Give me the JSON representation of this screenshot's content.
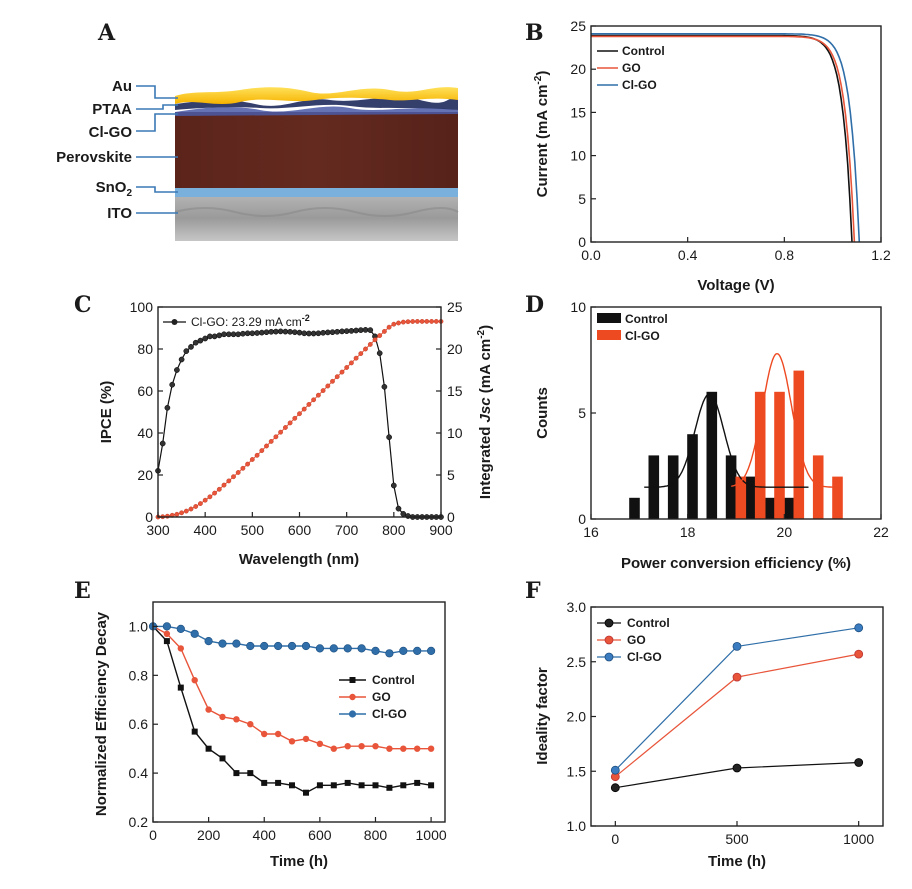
{
  "colors": {
    "control": "#111111",
    "go": "#e8553a",
    "clgo": "#2f6ea8",
    "accent_orange": "#ee4a22"
  },
  "panel_letters": {
    "A": "A",
    "B": "B",
    "C": "C",
    "D": "D",
    "E": "E",
    "F": "F"
  },
  "panel_a": {
    "layers": [
      "Au",
      "PTAA",
      "Cl-GO",
      "Perovskite",
      "SnO",
      "ITO"
    ],
    "sno2_subscript": "2"
  },
  "chart_data": [
    {
      "panel": "B",
      "type": "line",
      "xlabel": "Voltage (V)",
      "ylabel_prefix": "Current (mA cm",
      "ylabel_exp": "-2",
      "ylabel_suffix": ")",
      "xlim": [
        0,
        1.2
      ],
      "ylim": [
        0,
        25
      ],
      "xticks": [
        "0.0",
        "0.4",
        "0.8",
        "1.2"
      ],
      "yticks": [
        "0",
        "5",
        "10",
        "15",
        "20",
        "25"
      ],
      "legend": [
        "Control",
        "GO",
        "Cl-GO"
      ],
      "series": [
        {
          "name": "Control",
          "jsc": 23.9,
          "voc": 1.08
        },
        {
          "name": "GO",
          "jsc": 23.8,
          "voc": 1.09
        },
        {
          "name": "Cl-GO",
          "jsc": 24.1,
          "voc": 1.11
        }
      ]
    },
    {
      "panel": "C",
      "type": "line",
      "xlabel": "Wavelength (nm)",
      "ylabel": "IPCE (%)",
      "ylabel2_prefix": "Integrated ",
      "ylabel2_italic": "Jsc",
      "ylabel2_suffix_a": " (mA cm",
      "ylabel2_exp": "-2",
      "ylabel2_suffix_b": ")",
      "legend_prefix": "Cl-GO: 23.29 mA cm",
      "legend_exp": "-2",
      "xlim": [
        300,
        900
      ],
      "ylim": [
        0,
        100
      ],
      "y2lim": [
        0,
        25
      ],
      "xticks": [
        "300",
        "400",
        "500",
        "600",
        "700",
        "800",
        "900"
      ],
      "yticks": [
        "0",
        "20",
        "40",
        "60",
        "80",
        "100"
      ],
      "y2ticks": [
        "0",
        "5",
        "10",
        "15",
        "20",
        "25"
      ],
      "ipce": {
        "x": [
          300,
          310,
          320,
          330,
          340,
          350,
          360,
          370,
          380,
          390,
          400,
          410,
          420,
          430,
          440,
          450,
          460,
          470,
          480,
          490,
          500,
          510,
          520,
          530,
          540,
          550,
          560,
          570,
          580,
          590,
          600,
          610,
          620,
          630,
          640,
          650,
          660,
          670,
          680,
          690,
          700,
          710,
          720,
          730,
          740,
          750,
          760,
          770,
          780,
          790,
          800,
          810,
          820,
          830,
          840,
          850,
          860,
          870,
          880,
          890,
          900
        ],
        "y": [
          22,
          35,
          52,
          63,
          70,
          75,
          79,
          81,
          83,
          84,
          85,
          86,
          86,
          86.5,
          87,
          87,
          87,
          87,
          87.3,
          87.5,
          87.5,
          87.6,
          87.8,
          88,
          88.2,
          88.3,
          88.4,
          88.3,
          88.2,
          88,
          87.8,
          87.5,
          87.4,
          87.4,
          87.5,
          87.7,
          87.9,
          88,
          88.2,
          88.4,
          88.5,
          88.6,
          88.8,
          89,
          89.1,
          89,
          86,
          78,
          62,
          38,
          15,
          4,
          1.5,
          0.5,
          0,
          0,
          0,
          0,
          0,
          0,
          0
        ]
      },
      "jsc_integrated": {
        "x": [
          300,
          310,
          320,
          330,
          340,
          350,
          360,
          370,
          380,
          390,
          400,
          410,
          420,
          430,
          440,
          450,
          460,
          470,
          480,
          490,
          500,
          510,
          520,
          530,
          540,
          550,
          560,
          570,
          580,
          590,
          600,
          610,
          620,
          630,
          640,
          650,
          660,
          670,
          680,
          690,
          700,
          710,
          720,
          730,
          740,
          750,
          760,
          770,
          780,
          790,
          800,
          810,
          820,
          830,
          840,
          850,
          860,
          870,
          880,
          890,
          900
        ],
        "y": [
          0,
          0.03,
          0.1,
          0.2,
          0.32,
          0.5,
          0.7,
          0.95,
          1.25,
          1.6,
          2.0,
          2.4,
          2.85,
          3.3,
          3.8,
          4.3,
          4.8,
          5.3,
          5.8,
          6.3,
          6.85,
          7.35,
          7.9,
          8.45,
          9.0,
          9.55,
          10.1,
          10.65,
          11.2,
          11.75,
          12.3,
          12.85,
          13.4,
          13.95,
          14.5,
          15.05,
          15.6,
          16.15,
          16.7,
          17.25,
          17.8,
          18.35,
          18.9,
          19.45,
          20.0,
          20.55,
          21.1,
          21.6,
          22.1,
          22.6,
          22.95,
          23.1,
          23.2,
          23.25,
          23.27,
          23.28,
          23.29,
          23.29,
          23.29,
          23.29,
          23.29
        ]
      }
    },
    {
      "panel": "D",
      "type": "bar",
      "xlabel": "Power conversion efficiency (%)",
      "ylabel": "Counts",
      "xlim": [
        16,
        22
      ],
      "ylim": [
        0,
        10
      ],
      "xticks": [
        "16",
        "18",
        "20",
        "22"
      ],
      "yticks": [
        "0",
        "5",
        "10"
      ],
      "legend": [
        "Control",
        "Cl-GO"
      ],
      "series": [
        {
          "name": "Control",
          "x": [
            16.9,
            17.3,
            17.7,
            18.1,
            18.5,
            18.9,
            19.3,
            19.7,
            20.1
          ],
          "values": [
            1,
            3,
            3,
            4,
            6,
            3,
            2,
            1,
            1
          ],
          "fit_mu": 18.45,
          "fit_sigma": 0.3,
          "fit_amp": 4.4,
          "fit_base": 1.5,
          "fit_range": [
            17.1,
            20.5
          ]
        },
        {
          "name": "Cl-GO",
          "x": [
            19.1,
            19.5,
            19.9,
            20.3,
            20.7,
            21.1
          ],
          "values": [
            2,
            6,
            6,
            7,
            3,
            2
          ],
          "fit_mu": 19.85,
          "fit_sigma": 0.3,
          "fit_amp": 6.3,
          "fit_base": 1.5,
          "fit_range": [
            18.9,
            21.1
          ]
        }
      ]
    },
    {
      "panel": "E",
      "type": "line",
      "xlabel": "Time (h)",
      "ylabel": "Normalized Efficiency Decay",
      "xlim": [
        0,
        1050
      ],
      "ylim": [
        0.2,
        1.1
      ],
      "xticks": [
        "0",
        "200",
        "400",
        "600",
        "800",
        "1000"
      ],
      "yticks": [
        "0.2",
        "0.4",
        "0.6",
        "0.8",
        "1.0"
      ],
      "legend": [
        "Control",
        "GO",
        "Cl-GO"
      ],
      "x": [
        0,
        50,
        100,
        150,
        200,
        250,
        300,
        350,
        400,
        450,
        500,
        550,
        600,
        650,
        700,
        750,
        800,
        850,
        900,
        950,
        1000
      ],
      "series": [
        {
          "name": "Control",
          "values": [
            1.0,
            0.94,
            0.75,
            0.57,
            0.5,
            0.46,
            0.4,
            0.4,
            0.36,
            0.36,
            0.35,
            0.32,
            0.35,
            0.35,
            0.36,
            0.35,
            0.35,
            0.34,
            0.35,
            0.36,
            0.35
          ]
        },
        {
          "name": "GO",
          "values": [
            1.0,
            0.97,
            0.91,
            0.78,
            0.66,
            0.63,
            0.62,
            0.6,
            0.56,
            0.56,
            0.53,
            0.54,
            0.52,
            0.5,
            0.51,
            0.51,
            0.51,
            0.5,
            0.5,
            0.5,
            0.5
          ]
        },
        {
          "name": "Cl-GO",
          "values": [
            1.0,
            1.0,
            0.99,
            0.97,
            0.94,
            0.93,
            0.93,
            0.92,
            0.92,
            0.92,
            0.92,
            0.92,
            0.91,
            0.91,
            0.91,
            0.91,
            0.9,
            0.89,
            0.9,
            0.9,
            0.9
          ]
        }
      ]
    },
    {
      "panel": "F",
      "type": "line",
      "xlabel": "Time (h)",
      "ylabel": "Ideality factor",
      "xlim": [
        -100,
        1100
      ],
      "ylim": [
        1.0,
        3.0
      ],
      "xticks": [
        "0",
        "500",
        "1000"
      ],
      "yticks": [
        "1.0",
        "1.5",
        "2.0",
        "2.5",
        "3.0"
      ],
      "legend": [
        "Control",
        "GO",
        "Cl-GO"
      ],
      "x": [
        0,
        500,
        1000
      ],
      "series": [
        {
          "name": "Control",
          "values": [
            1.35,
            1.53,
            1.58
          ]
        },
        {
          "name": "GO",
          "values": [
            1.45,
            2.36,
            2.57
          ]
        },
        {
          "name": "Cl-GO",
          "values": [
            1.51,
            2.64,
            2.81
          ]
        }
      ]
    }
  ]
}
